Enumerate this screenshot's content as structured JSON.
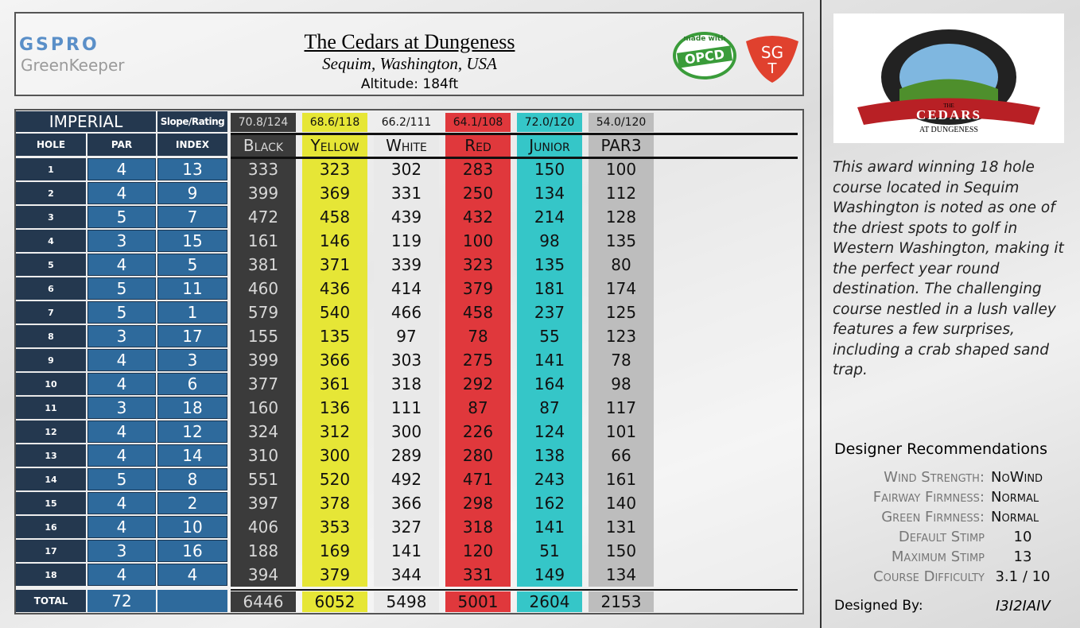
{
  "header": {
    "brand": "GSPRO",
    "brand_sub": "GreenKeeper",
    "title": "The Cedars at Dungeness",
    "location": "Sequim, Washington, USA",
    "altitude": "Altitude: 184ft",
    "badge_top": "made with",
    "badge_main": "OPCD",
    "badge_right": "SG",
    "badge_right_sub": "T"
  },
  "scorecard": {
    "units": "Imperial",
    "slope_header": "Slope/Rating",
    "columns": [
      "Hole",
      "Par",
      "Index"
    ],
    "total_label": "Total",
    "total_par": 72,
    "holes": [
      [
        1,
        4,
        13
      ],
      [
        2,
        4,
        9
      ],
      [
        3,
        5,
        7
      ],
      [
        4,
        3,
        15
      ],
      [
        5,
        4,
        5
      ],
      [
        6,
        5,
        11
      ],
      [
        7,
        5,
        1
      ],
      [
        8,
        3,
        17
      ],
      [
        9,
        4,
        3
      ],
      [
        10,
        4,
        6
      ],
      [
        11,
        3,
        18
      ],
      [
        12,
        4,
        12
      ],
      [
        13,
        4,
        14
      ],
      [
        14,
        5,
        8
      ],
      [
        15,
        4,
        2
      ],
      [
        16,
        4,
        10
      ],
      [
        17,
        3,
        16
      ],
      [
        18,
        4,
        4
      ]
    ],
    "tees": [
      {
        "rating": "70.8/124",
        "name": "Black",
        "color": "#3b3b3b",
        "yards": [
          333,
          399,
          472,
          161,
          381,
          460,
          579,
          155,
          399,
          377,
          160,
          324,
          310,
          551,
          397,
          406,
          188,
          394
        ],
        "total": 6446
      },
      {
        "rating": "68.6/118",
        "name": "Yellow",
        "color": "#e6e636",
        "yards": [
          323,
          369,
          458,
          146,
          371,
          436,
          540,
          135,
          366,
          361,
          136,
          312,
          300,
          520,
          378,
          353,
          169,
          379
        ],
        "total": 6052
      },
      {
        "rating": "66.2/111",
        "name": "White",
        "color": "#e9e9e9",
        "yards": [
          302,
          331,
          439,
          119,
          339,
          414,
          466,
          97,
          303,
          318,
          111,
          300,
          289,
          492,
          366,
          327,
          141,
          344
        ],
        "total": 5498
      },
      {
        "rating": "64.1/108",
        "name": "Red",
        "color": "#e0383c",
        "yards": [
          283,
          250,
          432,
          100,
          323,
          379,
          458,
          78,
          275,
          292,
          87,
          226,
          280,
          471,
          298,
          318,
          120,
          331
        ],
        "total": 5001
      },
      {
        "rating": "72.0/120",
        "name": "Junior",
        "color": "#35c6c8",
        "yards": [
          150,
          134,
          214,
          98,
          135,
          181,
          237,
          55,
          141,
          164,
          87,
          124,
          138,
          243,
          162,
          141,
          51,
          149
        ],
        "total": 2604
      },
      {
        "rating": "54.0/120",
        "name": "PAR3",
        "color": "#bdbdbd",
        "yards": [
          100,
          112,
          128,
          135,
          80,
          174,
          125,
          123,
          78,
          98,
          117,
          101,
          66,
          161,
          140,
          131,
          150,
          134
        ],
        "total": 2153
      }
    ]
  },
  "course_logo": {
    "top": "The",
    "name": "Cedars",
    "bottom": "at Dungeness"
  },
  "description": "This award winning 18 hole course located in Sequim Washington is noted as one of the driest spots to golf in Western Washington, making it the perfect year round destination. The challenging course nestled in a lush valley features a few surprises, including a crab shaped sand trap.",
  "recommendations": {
    "title": "Designer Recommendations",
    "items": [
      {
        "label": "Wind Strength:",
        "value": "NoWind"
      },
      {
        "label": "Fairway Firmness:",
        "value": "Normal"
      },
      {
        "label": "Green Firmness:",
        "value": "Normal"
      },
      {
        "label": "Default Stimp",
        "value": "10"
      },
      {
        "label": "Maximum Stimp",
        "value": "13"
      },
      {
        "label": "Course Difficulty",
        "value": "3.1 / 10"
      }
    ]
  },
  "designer": {
    "label": "Designed By:",
    "name": "I3I2IAIV"
  }
}
